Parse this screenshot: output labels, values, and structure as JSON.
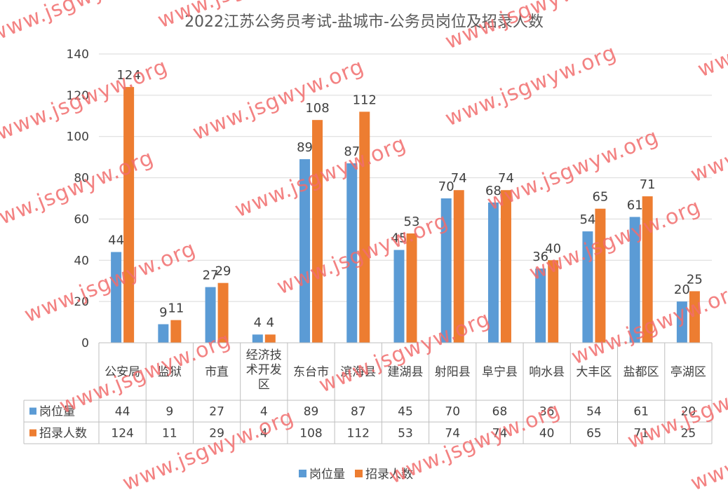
{
  "chart_data": {
    "type": "bar",
    "title": "2022江苏公务员考试-盐城市-公务员岗位及招录人数",
    "categories": [
      [
        "公安局"
      ],
      [
        "监狱"
      ],
      [
        "市直"
      ],
      [
        "经济技",
        "术开发",
        "区"
      ],
      [
        "东台市"
      ],
      [
        "滨海县"
      ],
      [
        "建湖县"
      ],
      [
        "射阳县"
      ],
      [
        "阜宁县"
      ],
      [
        "响水县"
      ],
      [
        "大丰区"
      ],
      [
        "盐都区"
      ],
      [
        "亭湖区"
      ]
    ],
    "series": [
      {
        "name": "岗位量",
        "color": "#5b9bd5",
        "values": [
          44,
          9,
          27,
          4,
          89,
          87,
          45,
          70,
          68,
          36,
          54,
          61,
          20
        ]
      },
      {
        "name": "招录人数",
        "color": "#ed7d31",
        "values": [
          124,
          11,
          29,
          4,
          108,
          112,
          53,
          74,
          74,
          40,
          65,
          71,
          25
        ]
      }
    ],
    "ylim": [
      0,
      140
    ],
    "yticks": [
      0,
      20,
      40,
      60,
      80,
      100,
      120,
      140
    ],
    "grid": true,
    "data_table": true,
    "legend": "bottom"
  },
  "watermark": "www.jsgwyw.org"
}
